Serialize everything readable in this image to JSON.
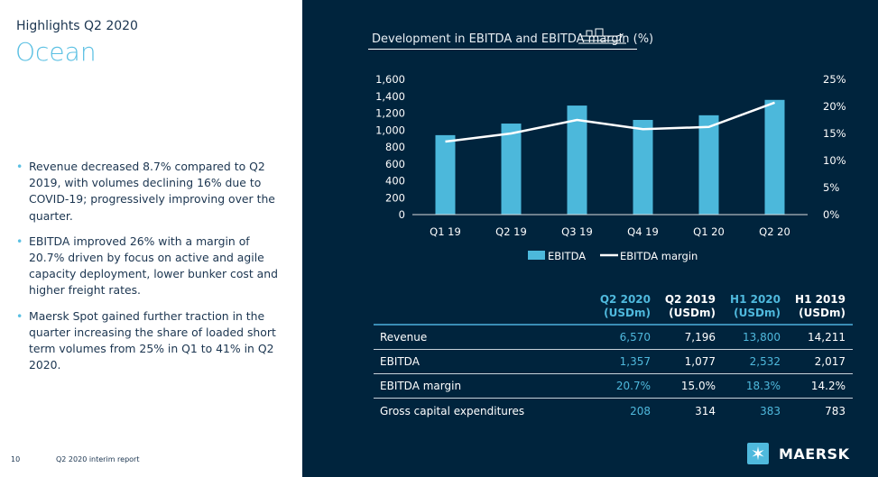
{
  "left": {
    "kicker": "Highlights Q2 2020",
    "title": "Ocean",
    "bullets": [
      "Revenue decreased 8.7% compared to Q2 2019, with volumes declining 16% due to COVID-19; progressively improving over the quarter.",
      "EBITDA improved 26% with a margin of 20.7% driven by focus on active and agile capacity deployment, lower bunker cost and higher freight rates.",
      "Maersk Spot gained further traction in the quarter increasing the share of loaded short term volumes from 25% in Q1 to 41% in Q2 2020."
    ],
    "page_number": "10",
    "report_name": "Q2 2020 interim report"
  },
  "chart_data": {
    "type": "bar+line",
    "title": "Development in EBITDA and EBITDA margin (%)",
    "categories": [
      "Q1 19",
      "Q2 19",
      "Q3 19",
      "Q4 19",
      "Q1 20",
      "Q2 20"
    ],
    "series": [
      {
        "name": "EBITDA",
        "type": "bar",
        "axis": "left",
        "values": [
          940,
          1077,
          1290,
          1120,
          1175,
          1357
        ]
      },
      {
        "name": "EBITDA margin",
        "type": "line",
        "axis": "right",
        "values": [
          13.5,
          15.0,
          17.5,
          15.8,
          16.2,
          20.7
        ]
      }
    ],
    "ylim": [
      0,
      1600
    ],
    "yticks": [
      "0",
      "200",
      "400",
      "600",
      "800",
      "1,000",
      "1,200",
      "1,400",
      "1,600"
    ],
    "y2lim": [
      0,
      25
    ],
    "y2ticks": [
      "0%",
      "5%",
      "10%",
      "15%",
      "20%",
      "25%"
    ],
    "legend": "bottom",
    "grid": false,
    "colors": {
      "bar": "#4cb8db",
      "line": "#ffffff"
    }
  },
  "table": {
    "headers": [
      [
        "Q2 2020",
        "(USDm)"
      ],
      [
        "Q2 2019",
        "(USDm)"
      ],
      [
        "H1 2020",
        "(USDm)"
      ],
      [
        "H1 2019",
        "(USDm)"
      ]
    ],
    "rows": [
      {
        "label": "Revenue",
        "values": [
          "6,570",
          "7,196",
          "13,800",
          "14,211"
        ]
      },
      {
        "label": "EBITDA",
        "values": [
          "1,357",
          "1,077",
          "2,532",
          "2,017"
        ]
      },
      {
        "label": "EBITDA margin",
        "values": [
          "20.7%",
          "15.0%",
          "18.3%",
          "14.2%"
        ]
      },
      {
        "label": "Gross capital expenditures",
        "values": [
          "208",
          "314",
          "383",
          "783"
        ]
      }
    ]
  },
  "brand": {
    "name": "MAERSK",
    "accent": "#4fb9dd",
    "background": "#00243d"
  }
}
